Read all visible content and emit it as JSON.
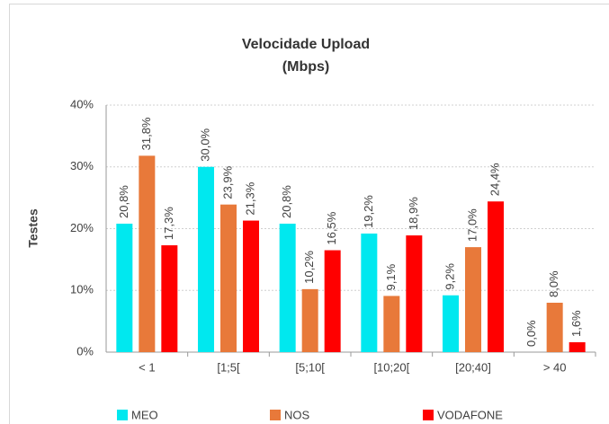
{
  "chart_data": {
    "type": "bar",
    "title": "Velocidade Upload",
    "subtitle": "(Mbps)",
    "y_label": "Testes",
    "categories": [
      "< 1",
      "[1;5[",
      "[5;10[",
      "[10;20[",
      "[20;40]",
      "> 40"
    ],
    "series": [
      {
        "name": "MEO",
        "color": "#00e8ef",
        "values": [
          20.8,
          30.0,
          20.8,
          19.2,
          9.2,
          0.0
        ],
        "value_labels": [
          "20,8%",
          "30,0%",
          "20,8%",
          "19,2%",
          "9,2%",
          "0,0%"
        ]
      },
      {
        "name": "NOS",
        "color": "#e8793a",
        "values": [
          31.8,
          23.9,
          10.2,
          9.1,
          17.0,
          8.0
        ],
        "value_labels": [
          "31,8%",
          "23,9%",
          "10,2%",
          "9,1%",
          "17,0%",
          "8,0%"
        ]
      },
      {
        "name": "VODAFONE",
        "color": "#ff0000",
        "values": [
          17.3,
          21.3,
          16.5,
          18.9,
          24.4,
          1.6
        ],
        "value_labels": [
          "17,3%",
          "21,3%",
          "16,5%",
          "18,9%",
          "24,4%",
          "1,6%"
        ]
      }
    ],
    "ylim": [
      0,
      40
    ],
    "yticks": [
      {
        "value": 0,
        "label": "0%"
      },
      {
        "value": 10,
        "label": "10%"
      },
      {
        "value": 20,
        "label": "20%"
      },
      {
        "value": 30,
        "label": "30%"
      },
      {
        "value": 40,
        "label": "40%"
      }
    ],
    "grid": true,
    "legend": "bottom"
  }
}
